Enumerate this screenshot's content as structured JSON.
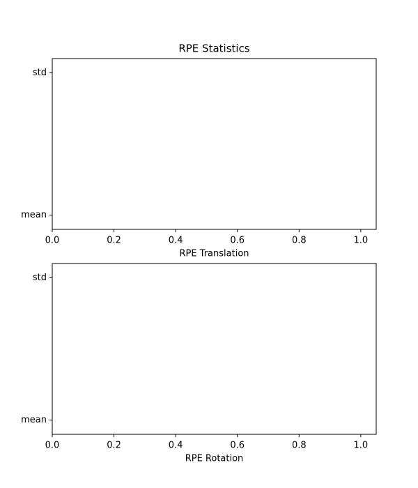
{
  "chart_data": [
    {
      "type": "barh",
      "title": "RPE Statistics",
      "xlabel": "RPE Translation",
      "categories": [
        "mean",
        "std"
      ],
      "xlim": [
        0,
        1.05
      ],
      "xticks": [
        {
          "value": 0,
          "label": "0.0"
        },
        0.2,
        0.4,
        0.6,
        0.8,
        {
          "value": 1,
          "label": "1.0"
        }
      ]
    },
    {
      "type": "barh",
      "xlabel": "RPE Rotation",
      "categories": [
        "mean",
        "std"
      ],
      "xlim": [
        0,
        1.05
      ],
      "xticks": [
        {
          "value": 0,
          "label": "0.0"
        },
        0.2,
        0.4,
        0.6,
        0.8,
        {
          "value": 1,
          "label": "1.0"
        }
      ]
    }
  ]
}
